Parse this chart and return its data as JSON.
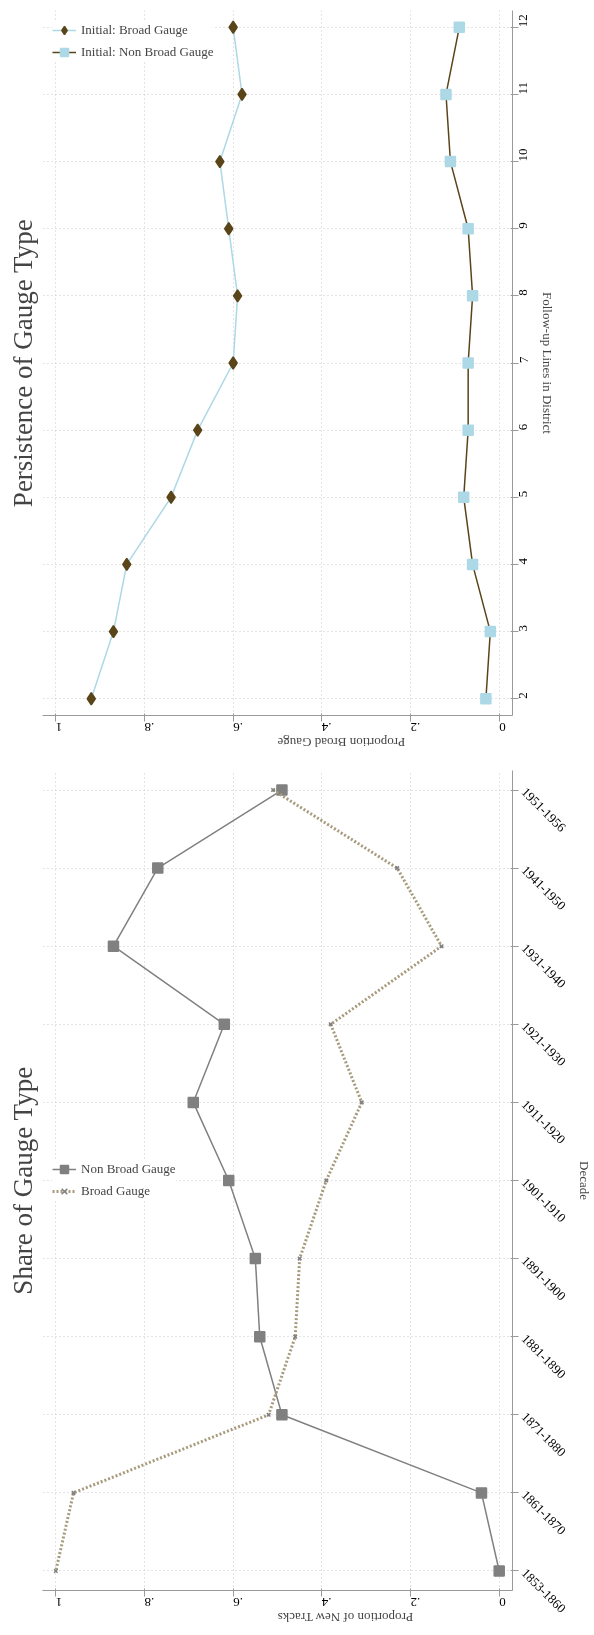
{
  "chart_data": [
    {
      "type": "line",
      "orientation": "horizontal",
      "title": "Share of Gauge Type",
      "ylabel": "Decade",
      "xlabel": "Proportion of New Tracks",
      "categories": [
        "1951-1956",
        "1941-1950",
        "1931-1940",
        "1921-1930",
        "1911-1920",
        "1901-1910",
        "1891-1900",
        "1881-1890",
        "1871-1880",
        "1861-1870",
        "1853-1860"
      ],
      "series": [
        {
          "name": "Non Broad Gauge",
          "color": "#808080",
          "colors": [
            "#808080",
            "#808080",
            "#808080",
            "#808080",
            "#808080",
            "#808080",
            "#808080",
            "#808080",
            "#808080",
            "#808080",
            "#808080"
          ],
          "marker": "square",
          "line_style": "solid",
          "values": [
            0.49,
            0.77,
            0.87,
            0.62,
            0.69,
            0.61,
            0.55,
            0.54,
            0.49,
            0.04,
            0.0
          ]
        },
        {
          "name": "Broad Gauge",
          "color": "#a89a7c",
          "colors": [
            "#808080",
            "#808080",
            "#808080",
            "#808080",
            "#808080",
            "#808080",
            "#808080",
            "#808080",
            "#808080",
            "#808080",
            "#808080"
          ],
          "marker": "cross",
          "line_style": "dotted",
          "values": [
            0.51,
            0.23,
            0.13,
            0.38,
            0.31,
            0.39,
            0.45,
            0.46,
            0.52,
            0.96,
            1.0
          ]
        }
      ],
      "xlim": [
        1,
        0
      ],
      "xticks": [
        {
          "value": 0,
          "label": "0"
        },
        {
          "value": 0.2,
          "label": ".2"
        },
        {
          "value": 0.4,
          "label": ".4"
        },
        {
          "value": 0.6,
          "label": ".6"
        },
        {
          "value": 0.8,
          "label": ".8"
        },
        {
          "value": 1,
          "label": "1"
        }
      ],
      "grid": true,
      "legend": "center left"
    },
    {
      "type": "line",
      "orientation": "horizontal",
      "title": "Persistence of Gauge Type",
      "ylabel": "Follow-up Lines in District",
      "xlabel": "Proportion Broad Gauge",
      "x": [
        2,
        3,
        4,
        5,
        6,
        7,
        8,
        9,
        10,
        11,
        12
      ],
      "series": [
        {
          "name": "Initial: Broad Gauge",
          "color": "#add8e6",
          "colors": [
            "#5a4419",
            "#5a4419",
            "#5a4419",
            "#5a4419",
            "#5a4419",
            "#5a4419",
            "#5a4419",
            "#5a4419",
            "#5a4419",
            "#5a4419",
            "#5a4419"
          ],
          "marker": "diamond",
          "line_style": "solid",
          "values": [
            0.92,
            0.87,
            0.84,
            0.74,
            0.68,
            0.6,
            0.59,
            0.61,
            0.63,
            0.58,
            0.6
          ]
        },
        {
          "name": "Initial: Non Broad Gauge",
          "color": "#5a4419",
          "colors": [
            "#add8e6",
            "#add8e6",
            "#add8e6",
            "#add8e6",
            "#add8e6",
            "#add8e6",
            "#add8e6",
            "#add8e6",
            "#add8e6",
            "#add8e6",
            "#add8e6"
          ],
          "marker": "square",
          "line_style": "solid",
          "values": [
            0.03,
            0.02,
            0.06,
            0.08,
            0.07,
            0.07,
            0.06,
            0.07,
            0.11,
            0.12,
            0.09
          ]
        }
      ],
      "ylim": [
        2,
        12
      ],
      "yticks": [
        2,
        3,
        4,
        5,
        6,
        7,
        8,
        9,
        10,
        11,
        12
      ],
      "xlim": [
        1,
        0
      ],
      "xticks": [
        {
          "value": 0,
          "label": "0"
        },
        {
          "value": 0.2,
          "label": ".2"
        },
        {
          "value": 0.4,
          "label": ".4"
        },
        {
          "value": 0.6,
          "label": ".6"
        },
        {
          "value": 0.8,
          "label": ".8"
        },
        {
          "value": 1,
          "label": "1"
        }
      ],
      "grid": true,
      "legend": "top left"
    }
  ]
}
